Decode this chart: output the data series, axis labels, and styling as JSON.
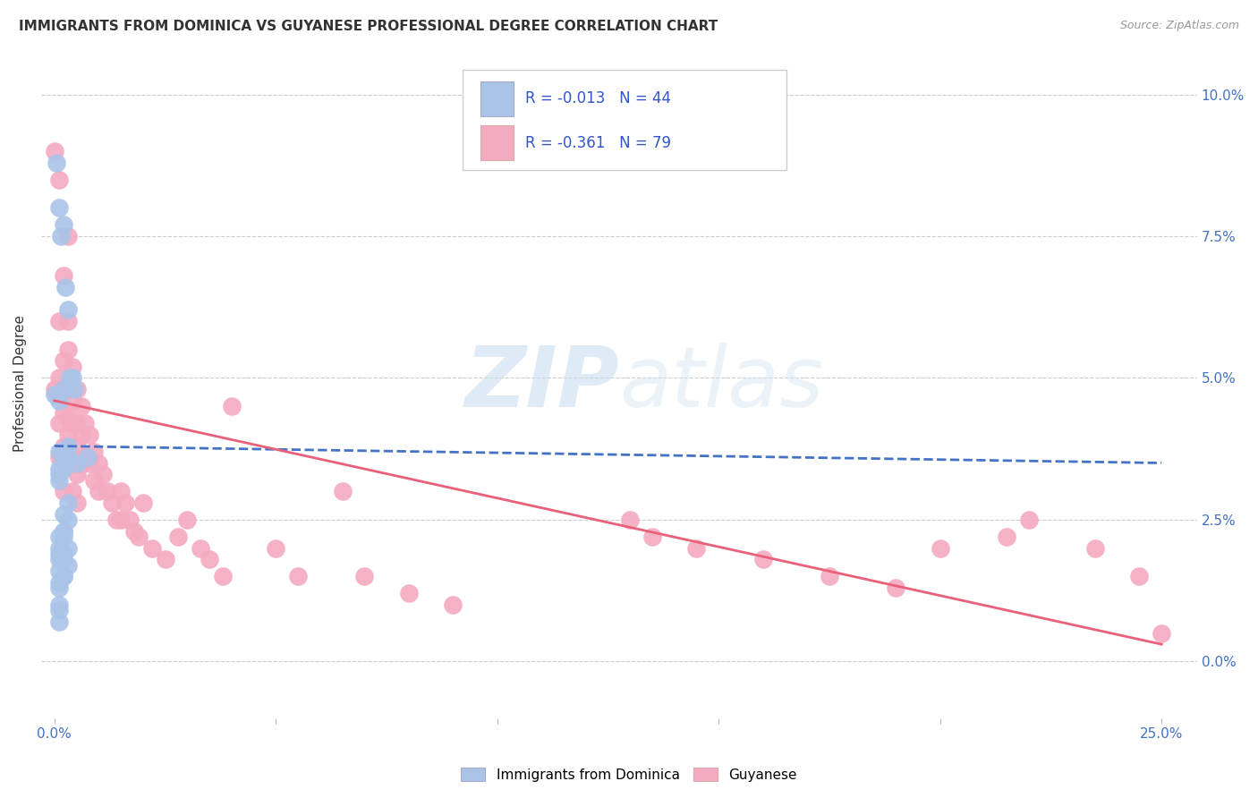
{
  "title": "IMMIGRANTS FROM DOMINICA VS GUYANESE PROFESSIONAL DEGREE CORRELATION CHART",
  "source": "Source: ZipAtlas.com",
  "ylabel_label": "Professional Degree",
  "x_tick_vals": [
    0.0,
    0.05,
    0.1,
    0.15,
    0.2,
    0.25
  ],
  "x_tick_labels_sparse": [
    "0.0%",
    "",
    "",
    "",
    "",
    "25.0%"
  ],
  "y_tick_vals": [
    0.0,
    0.025,
    0.05,
    0.075,
    0.1
  ],
  "y_tick_labels_right": [
    "0.0%",
    "2.5%",
    "5.0%",
    "7.5%",
    "10.0%"
  ],
  "xlim": [
    -0.003,
    0.258
  ],
  "ylim": [
    -0.01,
    0.108
  ],
  "legend1_label": "Immigrants from Dominica",
  "legend2_label": "Guyanese",
  "R1": "-0.013",
  "N1": "44",
  "R2": "-0.361",
  "N2": "79",
  "color1": "#aac4e8",
  "color2": "#f4aac0",
  "line1_color": "#4472c4",
  "line2_color": "#e8607a",
  "watermark_zip": "ZIP",
  "watermark_atlas": "atlas",
  "bg_color": "#ffffff",
  "dom_x": [
    0.0005,
    0.001,
    0.0015,
    0.002,
    0.0025,
    0.003,
    0.0035,
    0.004,
    0.0045,
    0.005,
    0.0,
    0.001,
    0.002,
    0.001,
    0.001,
    0.002,
    0.003,
    0.001,
    0.002,
    0.002,
    0.003,
    0.003,
    0.002,
    0.001,
    0.002,
    0.003,
    0.001,
    0.002,
    0.002,
    0.003,
    0.002,
    0.001,
    0.001,
    0.003,
    0.001,
    0.002,
    0.002,
    0.001,
    0.001,
    0.001,
    0.001,
    0.001,
    0.001,
    0.0075
  ],
  "dom_y": [
    0.088,
    0.08,
    0.075,
    0.077,
    0.066,
    0.062,
    0.05,
    0.05,
    0.048,
    0.035,
    0.047,
    0.046,
    0.048,
    0.032,
    0.034,
    0.034,
    0.036,
    0.033,
    0.026,
    0.022,
    0.025,
    0.028,
    0.023,
    0.022,
    0.023,
    0.02,
    0.019,
    0.019,
    0.018,
    0.038,
    0.037,
    0.02,
    0.018,
    0.017,
    0.016,
    0.015,
    0.015,
    0.014,
    0.013,
    0.01,
    0.009,
    0.007,
    0.037,
    0.036
  ],
  "guy_x": [
    0.0,
    0.0,
    0.001,
    0.001,
    0.001,
    0.001,
    0.001,
    0.001,
    0.002,
    0.002,
    0.002,
    0.002,
    0.002,
    0.002,
    0.003,
    0.003,
    0.003,
    0.003,
    0.003,
    0.003,
    0.003,
    0.004,
    0.004,
    0.004,
    0.004,
    0.004,
    0.005,
    0.005,
    0.005,
    0.005,
    0.005,
    0.006,
    0.006,
    0.006,
    0.007,
    0.007,
    0.008,
    0.008,
    0.009,
    0.009,
    0.01,
    0.01,
    0.011,
    0.012,
    0.013,
    0.014,
    0.015,
    0.015,
    0.016,
    0.017,
    0.018,
    0.019,
    0.02,
    0.022,
    0.025,
    0.028,
    0.03,
    0.033,
    0.035,
    0.038,
    0.04,
    0.05,
    0.055,
    0.065,
    0.07,
    0.08,
    0.09,
    0.13,
    0.135,
    0.145,
    0.16,
    0.175,
    0.19,
    0.2,
    0.215,
    0.22,
    0.235,
    0.245,
    0.25
  ],
  "guy_y": [
    0.09,
    0.048,
    0.085,
    0.06,
    0.05,
    0.047,
    0.042,
    0.036,
    0.068,
    0.053,
    0.048,
    0.044,
    0.038,
    0.03,
    0.075,
    0.06,
    0.055,
    0.048,
    0.043,
    0.04,
    0.035,
    0.052,
    0.046,
    0.042,
    0.036,
    0.03,
    0.048,
    0.042,
    0.038,
    0.033,
    0.028,
    0.045,
    0.04,
    0.035,
    0.042,
    0.036,
    0.04,
    0.035,
    0.037,
    0.032,
    0.035,
    0.03,
    0.033,
    0.03,
    0.028,
    0.025,
    0.03,
    0.025,
    0.028,
    0.025,
    0.023,
    0.022,
    0.028,
    0.02,
    0.018,
    0.022,
    0.025,
    0.02,
    0.018,
    0.015,
    0.045,
    0.02,
    0.015,
    0.03,
    0.015,
    0.012,
    0.01,
    0.025,
    0.022,
    0.02,
    0.018,
    0.015,
    0.013,
    0.02,
    0.022,
    0.025,
    0.02,
    0.015,
    0.005
  ],
  "line1_x": [
    0.0,
    0.25
  ],
  "line1_y": [
    0.038,
    0.035
  ],
  "line2_x": [
    0.0,
    0.25
  ],
  "line2_y": [
    0.046,
    0.003
  ]
}
